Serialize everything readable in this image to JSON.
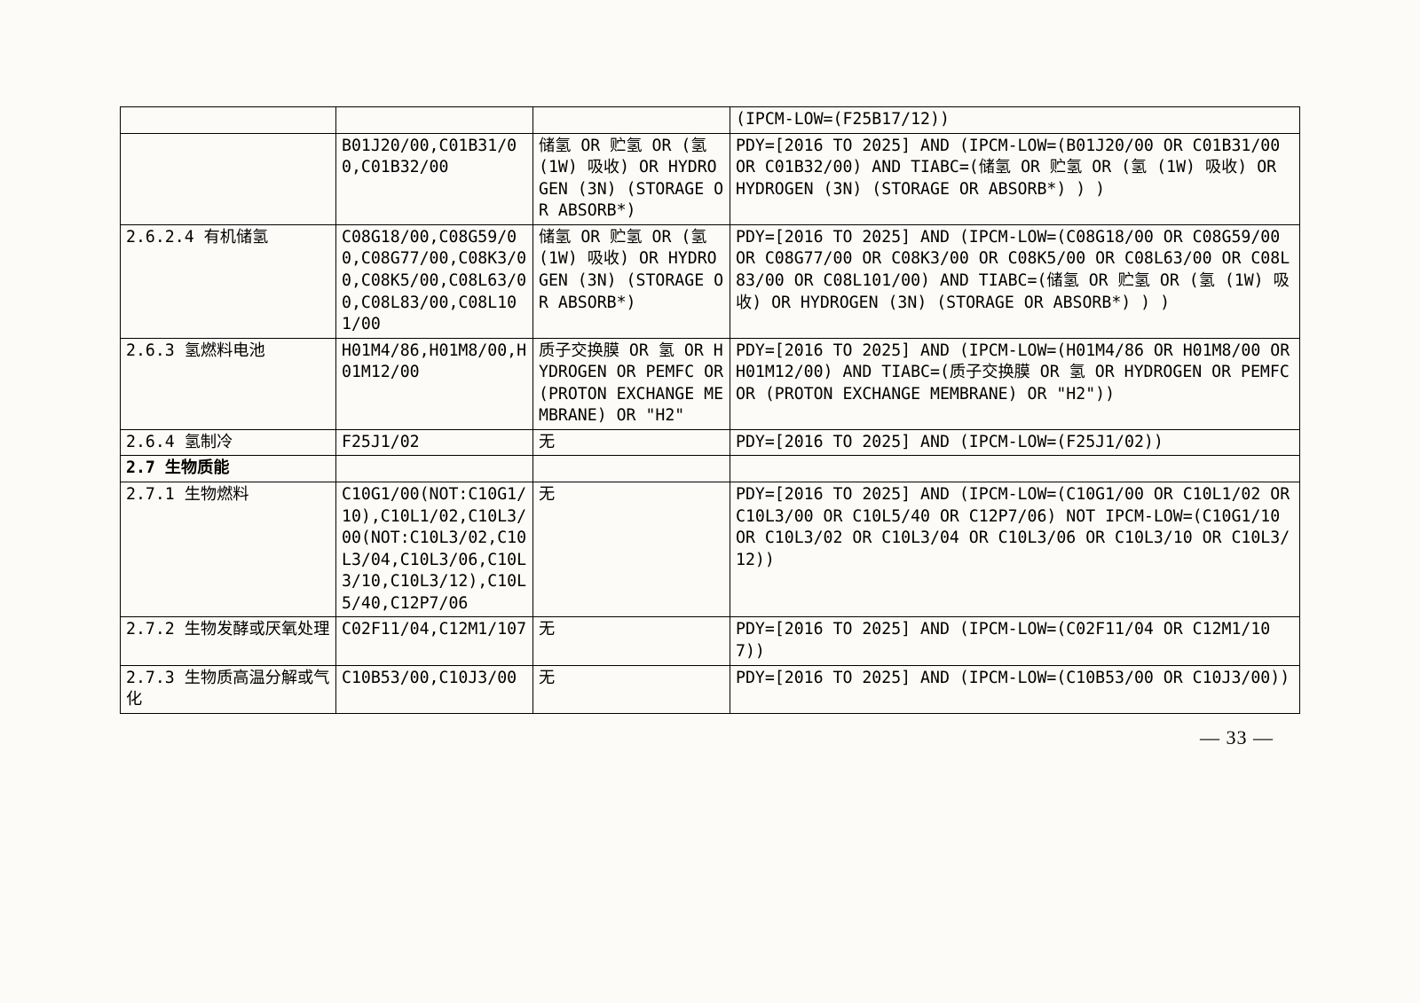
{
  "rows": [
    {
      "c1": "",
      "c2": "",
      "c3": "",
      "c4": "(IPCM-LOW=(F25B17/12))"
    },
    {
      "c1": "",
      "c2": "B01J20/00,C01B31/00,C01B32/00",
      "c3": "储氢 OR 贮氢 OR (氢 (1W) 吸收) OR HYDROGEN (3N) (STORAGE OR ABSORB*)",
      "c4": "PDY=[2016 TO 2025] AND (IPCM-LOW=(B01J20/00 OR C01B31/00 OR C01B32/00) AND TIABC=(储氢 OR 贮氢 OR (氢 (1W) 吸收) OR HYDROGEN (3N) (STORAGE OR ABSORB*) ) )"
    },
    {
      "c1": "2.6.2.4 有机储氢",
      "c2": "C08G18/00,C08G59/00,C08G77/00,C08K3/00,C08K5/00,C08L63/00,C08L83/00,C08L101/00",
      "c3": "储氢 OR 贮氢 OR (氢 (1W) 吸收) OR HYDROGEN (3N) (STORAGE OR ABSORB*)",
      "c4": "PDY=[2016 TO 2025] AND (IPCM-LOW=(C08G18/00 OR C08G59/00 OR C08G77/00 OR C08K3/00 OR C08K5/00 OR C08L63/00 OR C08L83/00 OR C08L101/00) AND TIABC=(储氢 OR 贮氢 OR (氢 (1W) 吸收) OR HYDROGEN (3N) (STORAGE OR ABSORB*) ) )"
    },
    {
      "c1": "2.6.3 氢燃料电池",
      "c2": "H01M4/86,H01M8/00,H01M12/00",
      "c3": "质子交换膜 OR 氢 OR HYDROGEN OR PEMFC OR (PROTON EXCHANGE MEMBRANE) OR \"H2\"",
      "c4": "PDY=[2016 TO 2025] AND (IPCM-LOW=(H01M4/86 OR H01M8/00 OR H01M12/00) AND TIABC=(质子交换膜 OR 氢 OR HYDROGEN OR PEMFC OR (PROTON EXCHANGE MEMBRANE) OR \"H2\"))"
    },
    {
      "c1": "2.6.4 氢制冷",
      "c2": "F25J1/02",
      "c3": "无",
      "c4": "PDY=[2016 TO 2025] AND (IPCM-LOW=(F25J1/02))"
    },
    {
      "header": true,
      "c1": "2.7 生物质能"
    },
    {
      "c1": "2.7.1 生物燃料",
      "c2": "C10G1/00(NOT:C10G1/10),C10L1/02,C10L3/00(NOT:C10L3/02,C10L3/04,C10L3/06,C10L3/10,C10L3/12),C10L5/40,C12P7/06",
      "c3": "无",
      "c4": "PDY=[2016 TO 2025] AND (IPCM-LOW=(C10G1/00 OR C10L1/02 OR C10L3/00 OR C10L5/40 OR C12P7/06) NOT IPCM-LOW=(C10G1/10 OR C10L3/02 OR C10L3/04 OR C10L3/06 OR C10L3/10 OR C10L3/12))"
    },
    {
      "c1": "2.7.2 生物发酵或厌氧处理",
      "c2": "C02F11/04,C12M1/107",
      "c3": "无",
      "c4": "PDY=[2016 TO 2025] AND (IPCM-LOW=(C02F11/04 OR C12M1/107))"
    },
    {
      "c1": "2.7.3 生物质高温分解或气化",
      "c2": "C10B53/00,C10J3/00",
      "c3": "无",
      "c4": "PDY=[2016 TO 2025] AND (IPCM-LOW=(C10B53/00 OR C10J3/00))"
    }
  ],
  "page_number": "— 33 —",
  "col_widths": {
    "a": 243,
    "b": 222,
    "c": 222
  }
}
